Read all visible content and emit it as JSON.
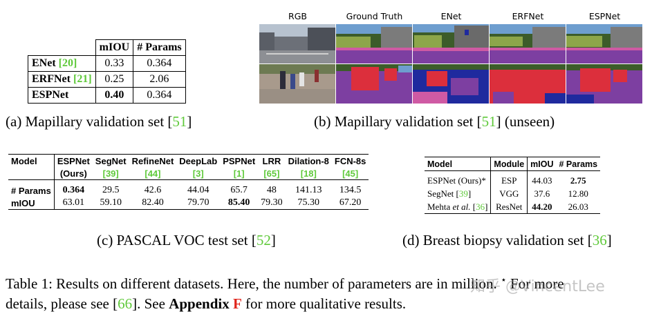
{
  "table_a": {
    "headers": [
      "mIOU",
      "# Params"
    ],
    "rows": [
      {
        "model": "ENet",
        "cite": "20",
        "miou": "0.33",
        "params": "0.364"
      },
      {
        "model": "ERFNet",
        "cite": "21",
        "miou": "0.25",
        "params": "2.06"
      },
      {
        "model": "ESPNet",
        "cite": "",
        "miou": "0.40",
        "params": "0.364"
      }
    ]
  },
  "caption_a": {
    "prefix": "(a) Mapillary validation set [",
    "cite": "51",
    "suffix": "]"
  },
  "figure_b": {
    "column_headers": [
      "RGB",
      "Ground Truth",
      "ENet",
      "ERFNet",
      "ESPNet"
    ]
  },
  "caption_b": {
    "prefix": "(b) Mapillary validation set [",
    "cite": "51",
    "suffix": "] (unseen)"
  },
  "table_c": {
    "header_label": "Model",
    "models": [
      {
        "name": "ESPNet",
        "cite": "(Ours)",
        "is_ours": true
      },
      {
        "name": "SegNet",
        "cite": "39"
      },
      {
        "name": "RefineNet",
        "cite": "44"
      },
      {
        "name": "DeepLab",
        "cite": "3"
      },
      {
        "name": "PSPNet",
        "cite": "1"
      },
      {
        "name": "LRR",
        "cite": "65"
      },
      {
        "name": "Dilation-8",
        "cite": "18"
      },
      {
        "name": "FCN-8s",
        "cite": "45"
      }
    ],
    "params_label": "# Params",
    "params": [
      "0.364",
      "29.5",
      "42.6",
      "44.04",
      "65.7",
      "48",
      "141.13",
      "134.5"
    ],
    "miou_label": "mIOU",
    "miou": [
      "63.01",
      "59.10",
      "82.40",
      "79.70",
      "85.40",
      "79.30",
      "75.30",
      "67.20"
    ]
  },
  "caption_c": {
    "prefix": "(c) PASCAL VOC test set [",
    "cite": "52",
    "suffix": "]"
  },
  "table_d": {
    "headers": [
      "Model",
      "Module",
      "mIOU",
      "# Params"
    ],
    "rows": [
      {
        "model": "ESPNet (Ours)*",
        "cite": "",
        "module": "ESP",
        "miou": "44.03",
        "params": "2.75"
      },
      {
        "model": "SegNet [",
        "cite": "39",
        "suffix": "]",
        "module": "VGG",
        "miou": "37.6",
        "params": "12.80"
      },
      {
        "model": "Mehta ",
        "italic": "et al.",
        "cite": "36",
        "module": "ResNet",
        "miou": "44.20",
        "params": "26.03"
      }
    ]
  },
  "caption_d": {
    "prefix": "(d) Breast biopsy validation set [",
    "cite": "36",
    "suffix": "]"
  },
  "table_caption": {
    "line1": "Table 1: Results on different datasets. Here, the number of parameters are in million. ",
    "star": "⋆",
    "line1_end": " For more",
    "line2_a": "details, please see [",
    "cite": "66",
    "line2_b": "]. See ",
    "appendix": "Appendix",
    "appendix_letter": "F",
    "line2_c": " for more qualitative results."
  },
  "watermark": "知乎 @VincentLee"
}
